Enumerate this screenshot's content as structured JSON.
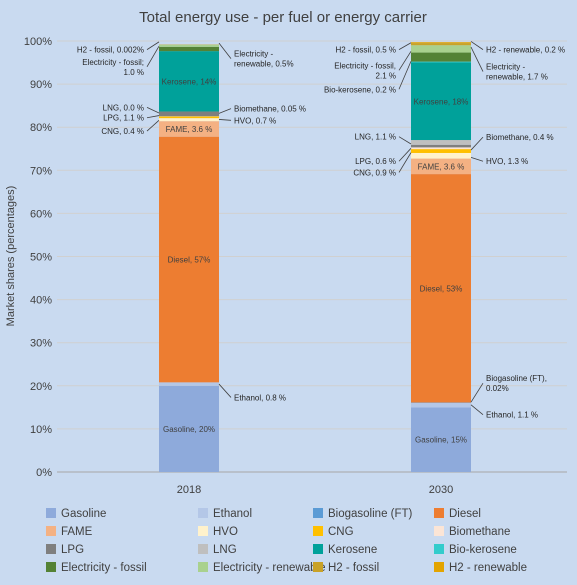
{
  "chart_data": {
    "type": "bar",
    "stacked": true,
    "title": "Total energy use - per fuel or energy carrier",
    "ylabel": "Market shares (percentages)",
    "xlabel": "",
    "ylim": [
      0,
      100
    ],
    "y_ticks": [
      "0%",
      "10%",
      "20%",
      "30%",
      "40%",
      "50%",
      "60%",
      "70%",
      "80%",
      "90%",
      "100%"
    ],
    "categories": [
      "2018",
      "2030"
    ],
    "grid": true,
    "legend_position": "bottom",
    "series": [
      {
        "name": "Gasoline",
        "color": "#8eaadb",
        "values": [
          20,
          15
        ]
      },
      {
        "name": "Ethanol",
        "color": "#b4c7e7",
        "values": [
          0.8,
          1.1
        ]
      },
      {
        "name": "Biogasoline (FT)",
        "color": "#5b9bd5",
        "values": [
          0,
          0.02
        ]
      },
      {
        "name": "Diesel",
        "color": "#ed7d31",
        "values": [
          57,
          53
        ]
      },
      {
        "name": "FAME",
        "color": "#f4b183",
        "values": [
          3.6,
          3.6
        ]
      },
      {
        "name": "HVO",
        "color": "#fff2cc",
        "values": [
          0.7,
          1.3
        ]
      },
      {
        "name": "CNG",
        "color": "#ffc000",
        "values": [
          0.4,
          0.9
        ]
      },
      {
        "name": "Biomethane",
        "color": "#fbe5d6",
        "values": [
          0.05,
          0.4
        ]
      },
      {
        "name": "LPG",
        "color": "#7f7f7f",
        "values": [
          1.1,
          0.6
        ]
      },
      {
        "name": "LNG",
        "color": "#bfbfbf",
        "values": [
          0,
          1.1
        ]
      },
      {
        "name": "Kerosene",
        "color": "#00a19a",
        "values": [
          14,
          18
        ]
      },
      {
        "name": "Bio-kerosene",
        "color": "#33cccc",
        "values": [
          0,
          0.2
        ]
      },
      {
        "name": "Electricity - fossil",
        "color": "#548235",
        "values": [
          1.0,
          2.1
        ]
      },
      {
        "name": "Electricity - renewable",
        "color": "#a9d18e",
        "values": [
          0.5,
          1.7
        ]
      },
      {
        "name": "H2 - fossil",
        "color": "#c9a227",
        "values": [
          0.002,
          0.5
        ]
      },
      {
        "name": "H2 - renewable",
        "color": "#e3a400",
        "values": [
          0,
          0.2
        ]
      }
    ],
    "segment_labels": [
      {
        "category": "2018",
        "series": "Gasoline",
        "text": "Gasoline, 20%"
      },
      {
        "category": "2018",
        "series": "Diesel",
        "text": "Diesel, 57%"
      },
      {
        "category": "2018",
        "series": "FAME",
        "text": "FAME, 3.6 %"
      },
      {
        "category": "2018",
        "series": "Kerosene",
        "text": "Kerosene, 14%"
      },
      {
        "category": "2030",
        "series": "Gasoline",
        "text": "Gasoline, 15%"
      },
      {
        "category": "2030",
        "series": "Diesel",
        "text": "Diesel, 53%"
      },
      {
        "category": "2030",
        "series": "FAME",
        "text": "FAME, 3.6 %"
      },
      {
        "category": "2030",
        "series": "Kerosene",
        "text": "Kerosene, 18%"
      }
    ],
    "annotations": [
      {
        "category": "2018",
        "side": "right",
        "lines": [
          "Ethanol, 0.8 %"
        ],
        "level": 20.4,
        "label_level": 17.3
      },
      {
        "category": "2018",
        "side": "left",
        "lines": [
          "CNG, 0.4 %"
        ],
        "level": 81.6,
        "label_level": 79.1
      },
      {
        "category": "2018",
        "side": "left",
        "lines": [
          "LPG, 1.1 %"
        ],
        "level": 82.7,
        "label_level": 82.2
      },
      {
        "category": "2018",
        "side": "left",
        "lines": [
          "LNG, 0.0 %"
        ],
        "level": 83.3,
        "label_level": 84.6
      },
      {
        "category": "2018",
        "side": "right",
        "lines": [
          "HVO, 0.7 %"
        ],
        "level": 81.8,
        "label_level": 81.6
      },
      {
        "category": "2018",
        "side": "right",
        "lines": [
          "Biomethane, 0.05 %"
        ],
        "level": 83.2,
        "label_level": 84.3
      },
      {
        "category": "2018",
        "side": "left",
        "lines": [
          "Electricity - fossil;",
          "1.0 %"
        ],
        "level": 98.8,
        "label_level": 94.0
      },
      {
        "category": "2018",
        "side": "left",
        "lines": [
          "H2 - fossil, 0.002%"
        ],
        "level": 99.8,
        "label_level": 98.0
      },
      {
        "category": "2018",
        "side": "right",
        "lines": [
          "Electricity -",
          "renewable, 0.5%"
        ],
        "level": 99.5,
        "label_level": 95.9
      },
      {
        "category": "2030",
        "side": "right",
        "lines": [
          "Biogasoline (FT),",
          "0.02%"
        ],
        "level": 16.2,
        "label_level": 20.6
      },
      {
        "category": "2030",
        "side": "right",
        "lines": [
          "Ethanol, 1.1 %"
        ],
        "level": 15.6,
        "label_level": 13.3
      },
      {
        "category": "2030",
        "side": "left",
        "lines": [
          "CNG, 0.9 %"
        ],
        "level": 74.1,
        "label_level": 69.5
      },
      {
        "category": "2030",
        "side": "left",
        "lines": [
          "LPG, 0.6 %"
        ],
        "level": 75.1,
        "label_level": 72.1
      },
      {
        "category": "2030",
        "side": "left",
        "lines": [
          "LNG, 1.1 %"
        ],
        "level": 76.1,
        "label_level": 77.8
      },
      {
        "category": "2030",
        "side": "right",
        "lines": [
          "HVO, 1.3 %"
        ],
        "level": 73.0,
        "label_level": 72.1
      },
      {
        "category": "2030",
        "side": "right",
        "lines": [
          "Biomethane, 0.4 %"
        ],
        "level": 74.7,
        "label_level": 77.7
      },
      {
        "category": "2030",
        "side": "left",
        "lines": [
          "Bio-kerosene, 0.2 %"
        ],
        "level": 95.3,
        "label_level": 88.8
      },
      {
        "category": "2030",
        "side": "left",
        "lines": [
          "Electricity - fossil,",
          "2.1 %"
        ],
        "level": 97.6,
        "label_level": 93.2
      },
      {
        "category": "2030",
        "side": "left",
        "lines": [
          "H2 - fossil, 0.5 %"
        ],
        "level": 99.6,
        "label_level": 98.0
      },
      {
        "category": "2030",
        "side": "right",
        "lines": [
          "H2 - renewable, 0.2 %"
        ],
        "level": 99.9,
        "label_level": 98.0
      },
      {
        "category": "2030",
        "side": "right",
        "lines": [
          "Electricity -",
          "renewable, 1.7 %"
        ],
        "level": 98.6,
        "label_level": 92.9
      }
    ]
  }
}
